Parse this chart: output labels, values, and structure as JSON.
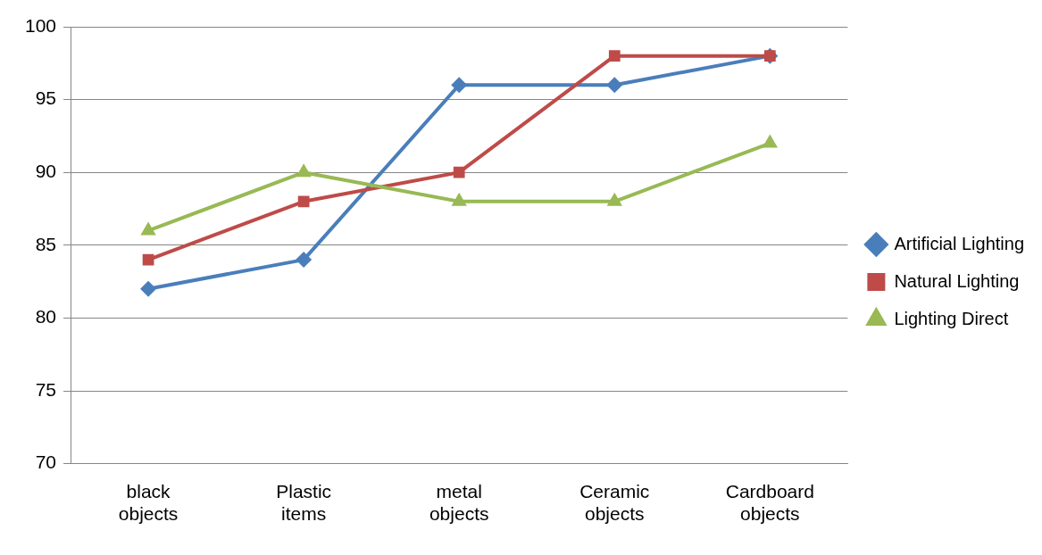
{
  "chart_data": {
    "type": "line",
    "categories": [
      "black objects",
      "Plastic items",
      "metal objects",
      "Ceramic objects",
      "Cardboard objects"
    ],
    "series": [
      {
        "name": "Artificial Lighting",
        "color": "#4a7ebb",
        "marker": "diamond",
        "values": [
          82,
          84,
          96,
          96,
          98
        ]
      },
      {
        "name": "Natural Lighting",
        "color": "#be4b48",
        "marker": "square",
        "values": [
          84,
          88,
          90,
          98,
          98
        ]
      },
      {
        "name": "Lighting Direct",
        "color": "#98b954",
        "marker": "triangle",
        "values": [
          86,
          90,
          88,
          88,
          92
        ]
      }
    ],
    "ylim": [
      70,
      100
    ],
    "yticks": [
      70,
      75,
      80,
      85,
      90,
      95,
      100
    ],
    "grid": "y",
    "legend": "right",
    "line_style": "solid"
  }
}
